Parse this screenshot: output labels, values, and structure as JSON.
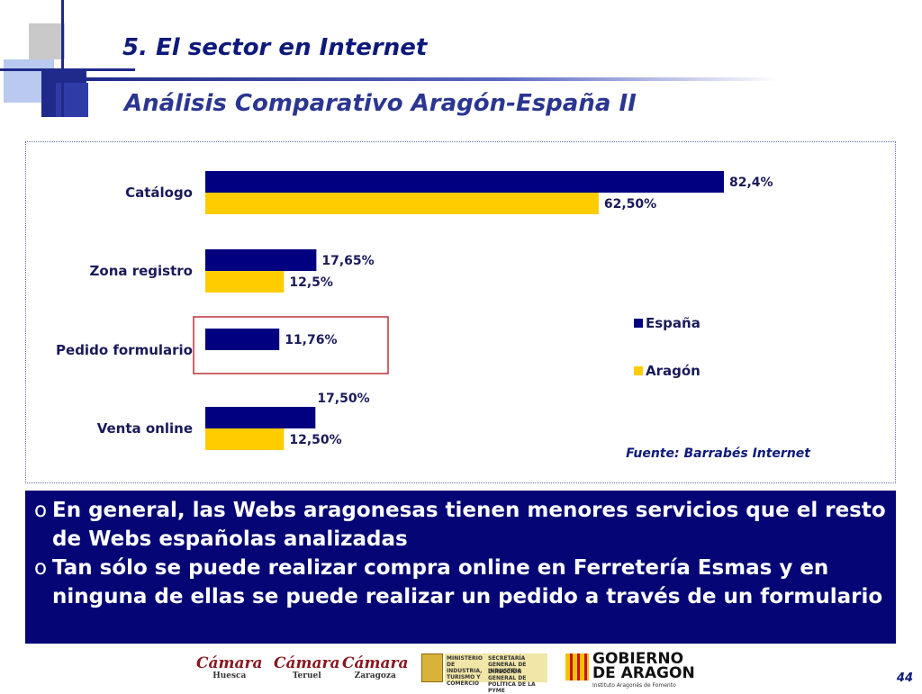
{
  "header": {
    "title": "5. El  sector en Internet",
    "subtitle": "Análisis Comparativo Aragón-España II"
  },
  "chart_data": {
    "type": "bar",
    "orientation": "horizontal",
    "categories": [
      "Catálogo",
      "Zona registro",
      "Pedido formulario",
      "Venta online"
    ],
    "series": [
      {
        "name": "España",
        "color": "#000080",
        "values": [
          82.4,
          17.65,
          11.76,
          17.5
        ],
        "labels": [
          "82,4%",
          "17,65%",
          "11,76%",
          "17,50%"
        ]
      },
      {
        "name": "Aragón",
        "color": "#FFCC00",
        "values": [
          62.5,
          12.5,
          0,
          12.5
        ],
        "labels": [
          "62,50%",
          "12,5%",
          "",
          "12,50%"
        ]
      }
    ],
    "xlim": [
      0,
      100
    ],
    "grid": false,
    "legend": "right",
    "highlight": "Pedido formulario",
    "source": "Fuente: Barrabés Internet"
  },
  "notes": [
    "En general, las Webs aragonesas tienen menores servicios que el resto de Webs españolas analizadas",
    "Tan sólo se puede realizar compra online en Ferretería Esmas y en ninguna de ellas se puede realizar un pedido a través de un formulario"
  ],
  "note_bullet": "o",
  "footer": {
    "logos": [
      {
        "name": "Cámara",
        "sub": "Huesca"
      },
      {
        "name": "Cámara",
        "sub": "Teruel"
      },
      {
        "name": "Cámara",
        "sub": "Zaragoza"
      }
    ],
    "ministerio": {
      "left": "MINISTERIO DE INDUSTRIA, TURISMO Y COMERCIO",
      "top": "SECRETARÍA GENERAL DE INDUSTRIA",
      "bottom": "DIRECCIÓN GENERAL DE POLÍTICA DE LA PYME"
    },
    "gobierno": {
      "line1": "GOBIERNO",
      "line2": "DE ARAGON",
      "sub": "Instituto Aragonés de Fomento"
    }
  },
  "page_number": "44"
}
